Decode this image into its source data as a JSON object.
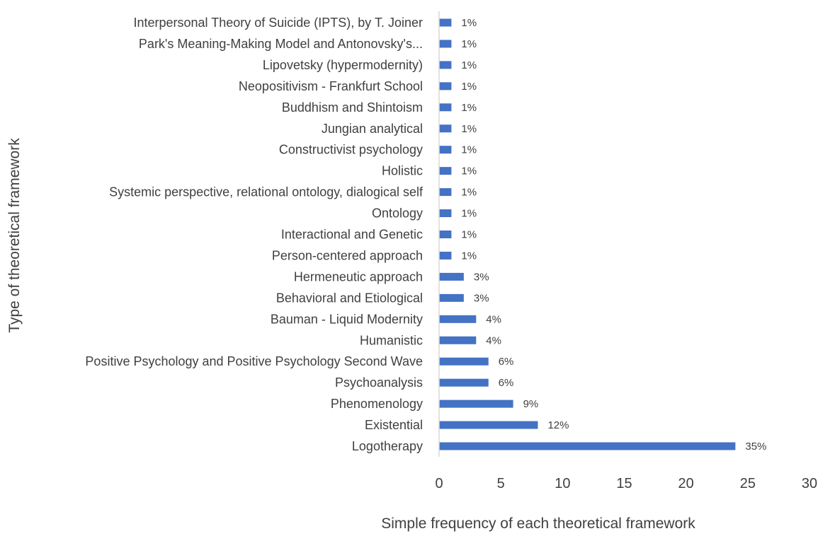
{
  "chart_data": {
    "type": "bar",
    "orientation": "horizontal",
    "title": "",
    "xlabel": "Simple frequency of each theoretical framework",
    "ylabel": "Type of theoretical framework",
    "xlim": [
      0,
      30
    ],
    "xticks": [
      "0",
      "5",
      "10",
      "15",
      "20",
      "25",
      "30"
    ],
    "grid": false,
    "legend": "none",
    "bar_color": "#4472C4",
    "categories": [
      "Interpersonal Theory of Suicide (IPTS), by T. Joiner",
      "Park's Meaning-Making Model and Antonovsky's...",
      "Lipovetsky (hypermodernity)",
      "Neopositivism - Frankfurt School",
      "Buddhism and Shintoism",
      "Jungian analytical",
      "Constructivist psychology",
      "Holistic",
      "Systemic perspective, relational ontology, dialogical self",
      "Ontology",
      "Interactional and Genetic",
      "Person-centered approach",
      "Hermeneutic approach",
      "Behavioral and Etiological",
      "Bauman - Liquid Modernity",
      "Humanistic",
      "Positive Psychology and Positive Psychology Second Wave",
      "Psychoanalysis",
      "Phenomenology",
      "Existential",
      "Logotherapy"
    ],
    "values": [
      1,
      1,
      1,
      1,
      1,
      1,
      1,
      1,
      1,
      1,
      1,
      1,
      2,
      2,
      3,
      3,
      4,
      4,
      6,
      8,
      24
    ],
    "data_labels": [
      "1%",
      "1%",
      "1%",
      "1%",
      "1%",
      "1%",
      "1%",
      "1%",
      "1%",
      "1%",
      "1%",
      "1%",
      "3%",
      "3%",
      "4%",
      "4%",
      "6%",
      "6%",
      "9%",
      "12%",
      "35%"
    ]
  }
}
